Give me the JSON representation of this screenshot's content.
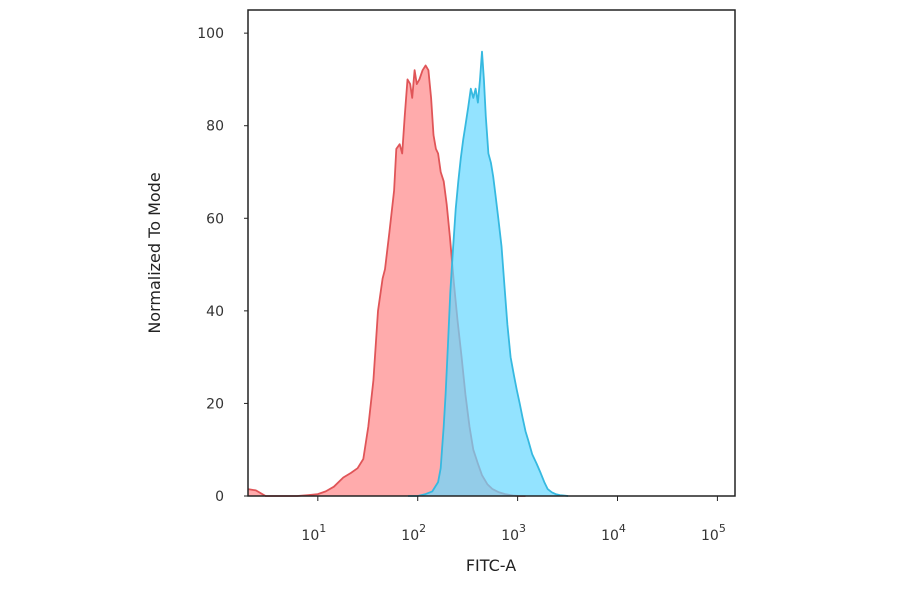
{
  "chart_data": {
    "type": "area",
    "title": "",
    "xlabel": "FITC-A",
    "ylabel": "Normalized To Mode",
    "xscale": "log",
    "xlim": [
      2,
      150000
    ],
    "ylim": [
      0,
      105
    ],
    "grid": false,
    "legend": "none",
    "x_ticks": [
      {
        "value": 10,
        "base": "10",
        "exp": "1"
      },
      {
        "value": 100,
        "base": "10",
        "exp": "2"
      },
      {
        "value": 1000,
        "base": "10",
        "exp": "3"
      },
      {
        "value": 10000,
        "base": "10",
        "exp": "4"
      },
      {
        "value": 100000,
        "base": "10",
        "exp": "5"
      }
    ],
    "y_ticks": [
      {
        "value": 0,
        "label": "0"
      },
      {
        "value": 20,
        "label": "20"
      },
      {
        "value": 40,
        "label": "40"
      },
      {
        "value": 60,
        "label": "60"
      },
      {
        "value": 80,
        "label": "80"
      },
      {
        "value": 100,
        "label": "100"
      }
    ],
    "series": [
      {
        "color": "#e05558",
        "fill": "#ff8a8c",
        "x": [
          2,
          2.4,
          3,
          4.2,
          6.2,
          8,
          10,
          12,
          14.5,
          18,
          21.5,
          25,
          28.5,
          32,
          36,
          40,
          44.5,
          47,
          52,
          58,
          61,
          66,
          70,
          74,
          79,
          84,
          88,
          93,
          98,
          104,
          112,
          120,
          128,
          136,
          144,
          152,
          160,
          170,
          182,
          195,
          210,
          230,
          250,
          275,
          300,
          330,
          360,
          400,
          440,
          500,
          560,
          650,
          750,
          900,
          1030,
          1200
        ],
        "y": [
          1.5,
          1.2,
          0,
          0,
          0,
          0.2,
          0.4,
          1,
          2,
          4,
          5,
          6,
          8,
          15,
          25,
          40,
          47,
          49,
          57,
          66,
          75,
          76,
          74,
          82,
          90,
          89,
          86,
          92,
          89,
          90,
          92,
          93,
          92,
          86,
          78,
          75,
          74,
          70,
          68,
          63,
          56,
          46,
          38,
          30,
          22,
          15,
          10,
          7,
          4.5,
          2.5,
          1.5,
          0.8,
          0.4,
          0.1,
          0,
          0
        ]
      },
      {
        "color": "#36b9e0",
        "fill": "#6ad8ff",
        "x": [
          80,
          100,
          120,
          140,
          160,
          170,
          175,
          182,
          190,
          200,
          212,
          225,
          240,
          255,
          270,
          285,
          300,
          320,
          340,
          360,
          380,
          400,
          420,
          440,
          460,
          480,
          510,
          540,
          570,
          600,
          640,
          690,
          740,
          790,
          850,
          920,
          980,
          1050,
          1120,
          1200,
          1280,
          1400,
          1550,
          1700,
          1850,
          2000,
          2200,
          2400,
          2650,
          2900,
          3200
        ],
        "y": [
          0,
          0,
          0.4,
          1,
          3,
          6,
          10,
          15,
          22,
          32,
          44,
          53,
          62,
          68,
          73,
          77,
          80,
          84,
          88,
          86,
          88,
          85,
          90,
          96,
          90,
          82,
          74,
          72,
          69,
          65,
          60,
          54,
          45,
          37,
          30,
          26,
          23,
          20,
          17,
          14,
          12,
          9,
          7,
          5,
          3,
          1.5,
          0.8,
          0.4,
          0.2,
          0.1,
          0
        ]
      }
    ]
  }
}
